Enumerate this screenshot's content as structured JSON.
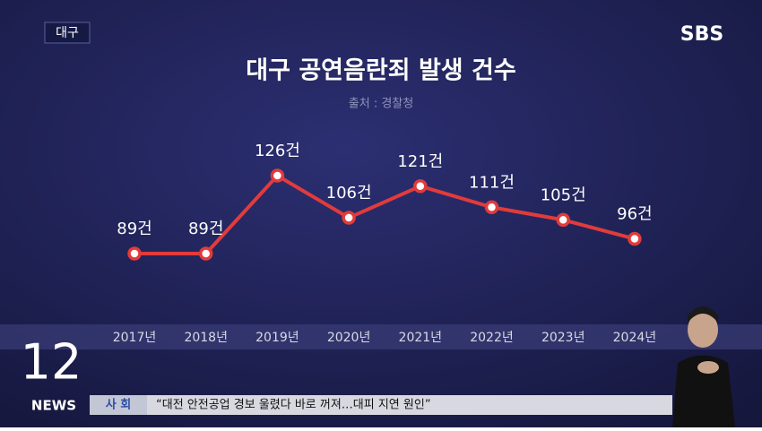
{
  "header": {
    "region_tag": "대구",
    "logo": "SBS"
  },
  "chart_data": {
    "type": "line",
    "title": "대구 공연음란죄 발생 건수",
    "subtitle": "출처 : 경찰청",
    "categories": [
      "2017년",
      "2018년",
      "2019년",
      "2020년",
      "2021년",
      "2022년",
      "2023년",
      "2024년"
    ],
    "values": [
      89,
      89,
      126,
      106,
      121,
      111,
      105,
      96
    ],
    "value_labels": [
      "89건",
      "89건",
      "126건",
      "106건",
      "121건",
      "111건",
      "105건",
      "96건"
    ],
    "color": "#e23b3b"
  },
  "footer": {
    "channel_number": "12",
    "news_label": "NEWS",
    "section": "사 회",
    "headline": "“대전 안전공업 경보 울렸다 바로 꺼져…대피 지연 원인”"
  }
}
